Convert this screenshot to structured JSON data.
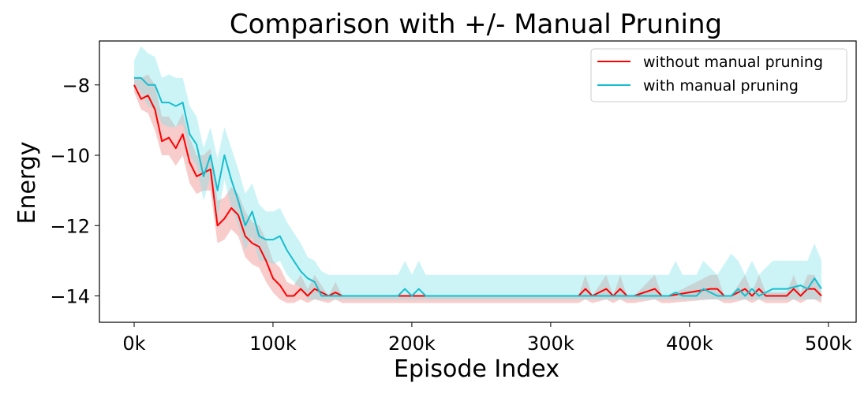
{
  "chart_data": {
    "type": "line",
    "title": "Comparison with +/- Manual Pruning",
    "xlabel": "Episode Index",
    "ylabel": "Energy",
    "xlim": [
      -25000,
      520000
    ],
    "ylim": [
      -14.75,
      -6.75
    ],
    "xticks": [
      0,
      100000,
      200000,
      300000,
      400000,
      500000
    ],
    "xtick_labels": [
      "0k",
      "100k",
      "200k",
      "300k",
      "400k",
      "500k"
    ],
    "yticks": [
      -8,
      -10,
      -12,
      -14
    ],
    "ytick_labels": [
      "−8",
      "−10",
      "−12",
      "−14"
    ],
    "grid": false,
    "legend_position": "top-right",
    "series": [
      {
        "name": "without manual pruning",
        "color": "#ff0000",
        "band_color": "#f08080",
        "x": [
          0,
          5000,
          10000,
          15000,
          20000,
          25000,
          30000,
          35000,
          40000,
          45000,
          50000,
          55000,
          60000,
          65000,
          70000,
          75000,
          80000,
          85000,
          90000,
          95000,
          100000,
          105000,
          110000,
          115000,
          120000,
          125000,
          130000,
          140000,
          145000,
          150000,
          200000,
          250000,
          300000,
          320000,
          325000,
          330000,
          340000,
          345000,
          350000,
          355000,
          360000,
          375000,
          380000,
          385000,
          415000,
          420000,
          425000,
          430000,
          440000,
          445000,
          450000,
          455000,
          460000,
          470000,
          475000,
          480000,
          485000,
          490000,
          495000
        ],
        "y": [
          -8.0,
          -8.4,
          -8.3,
          -8.7,
          -9.6,
          -9.5,
          -9.8,
          -9.4,
          -10.2,
          -10.6,
          -10.5,
          -10.4,
          -12.0,
          -11.8,
          -11.5,
          -11.7,
          -12.3,
          -12.5,
          -12.6,
          -13.0,
          -13.5,
          -13.7,
          -14.0,
          -14.0,
          -13.8,
          -14.0,
          -13.8,
          -14.0,
          -13.9,
          -14.0,
          -14.0,
          -14.0,
          -14.0,
          -14.0,
          -13.8,
          -14.0,
          -13.8,
          -14.0,
          -13.8,
          -14.0,
          -14.0,
          -13.8,
          -14.0,
          -14.0,
          -13.8,
          -13.8,
          -14.0,
          -14.0,
          -13.8,
          -14.0,
          -13.8,
          -14.0,
          -14.0,
          -14.0,
          -13.8,
          -14.0,
          -13.8,
          -13.8,
          -14.0
        ],
        "lower": [
          -8.2,
          -8.7,
          -8.8,
          -9.3,
          -10.0,
          -10.0,
          -10.3,
          -10.0,
          -10.8,
          -11.1,
          -11.0,
          -11.0,
          -12.5,
          -12.4,
          -12.1,
          -12.3,
          -12.9,
          -13.1,
          -13.2,
          -13.6,
          -13.9,
          -14.1,
          -14.2,
          -14.2,
          -14.1,
          -14.2,
          -14.1,
          -14.2,
          -14.1,
          -14.2,
          -14.2,
          -14.2,
          -14.2,
          -14.2,
          -14.1,
          -14.2,
          -14.1,
          -14.2,
          -14.1,
          -14.2,
          -14.2,
          -14.1,
          -14.2,
          -14.2,
          -14.1,
          -14.1,
          -14.2,
          -14.2,
          -14.1,
          -14.2,
          -14.1,
          -14.2,
          -14.2,
          -14.2,
          -14.1,
          -14.2,
          -14.1,
          -14.1,
          -14.2
        ],
        "upper": [
          -7.8,
          -7.8,
          -7.7,
          -8.0,
          -8.9,
          -8.9,
          -9.2,
          -8.8,
          -9.5,
          -10.0,
          -10.0,
          -9.8,
          -11.3,
          -11.2,
          -10.9,
          -11.1,
          -11.6,
          -11.9,
          -12.0,
          -12.4,
          -13.0,
          -13.2,
          -13.6,
          -13.7,
          -13.4,
          -13.8,
          -13.4,
          -14.0,
          -13.6,
          -14.0,
          -14.0,
          -14.0,
          -14.0,
          -14.0,
          -13.4,
          -14.0,
          -13.4,
          -14.0,
          -13.4,
          -14.0,
          -14.0,
          -13.4,
          -14.0,
          -14.0,
          -13.4,
          -13.4,
          -14.0,
          -14.0,
          -13.4,
          -13.9,
          -13.4,
          -13.9,
          -13.9,
          -13.9,
          -13.4,
          -13.9,
          -13.4,
          -13.4,
          -13.9
        ]
      },
      {
        "name": "with manual pruning",
        "color": "#17becf",
        "band_color": "#7fe3e8",
        "x": [
          0,
          5000,
          10000,
          15000,
          20000,
          25000,
          30000,
          35000,
          40000,
          45000,
          50000,
          55000,
          60000,
          65000,
          70000,
          75000,
          80000,
          85000,
          90000,
          95000,
          100000,
          105000,
          110000,
          115000,
          120000,
          125000,
          130000,
          135000,
          140000,
          150000,
          190000,
          195000,
          200000,
          205000,
          210000,
          250000,
          300000,
          350000,
          385000,
          390000,
          395000,
          405000,
          410000,
          420000,
          430000,
          435000,
          440000,
          445000,
          450000,
          460000,
          470000,
          480000,
          485000,
          490000,
          495000
        ],
        "y": [
          -7.8,
          -7.8,
          -8.0,
          -8.0,
          -8.5,
          -8.5,
          -8.6,
          -8.5,
          -9.4,
          -9.7,
          -10.6,
          -10.0,
          -11.0,
          -10.0,
          -10.7,
          -11.3,
          -12.0,
          -11.6,
          -12.3,
          -12.4,
          -12.4,
          -12.3,
          -12.7,
          -13.0,
          -13.3,
          -13.5,
          -13.6,
          -14.0,
          -14.0,
          -14.0,
          -14.0,
          -13.8,
          -14.0,
          -13.8,
          -14.0,
          -14.0,
          -14.0,
          -14.0,
          -14.0,
          -13.9,
          -14.0,
          -14.0,
          -13.8,
          -14.0,
          -14.0,
          -13.8,
          -14.0,
          -13.8,
          -14.0,
          -13.8,
          -13.8,
          -13.7,
          -13.8,
          -13.5,
          -13.8
        ],
        "lower": [
          -8.0,
          -8.2,
          -8.6,
          -8.7,
          -9.1,
          -9.2,
          -9.2,
          -9.1,
          -10.0,
          -10.3,
          -11.3,
          -10.6,
          -11.8,
          -10.7,
          -11.5,
          -12.0,
          -12.7,
          -12.3,
          -13.0,
          -13.0,
          -13.1,
          -13.0,
          -13.4,
          -13.6,
          -13.8,
          -14.1,
          -14.1,
          -14.1,
          -14.1,
          -14.1,
          -14.1,
          -14.1,
          -14.1,
          -14.1,
          -14.1,
          -14.1,
          -14.1,
          -14.1,
          -14.1,
          -14.1,
          -14.1,
          -14.1,
          -14.1,
          -14.1,
          -14.1,
          -14.1,
          -14.1,
          -14.1,
          -14.1,
          -14.1,
          -14.1,
          -14.1,
          -14.1,
          -14.1,
          -14.1
        ],
        "upper": [
          -7.3,
          -6.9,
          -7.1,
          -7.2,
          -7.8,
          -7.7,
          -7.8,
          -7.8,
          -8.6,
          -8.9,
          -9.8,
          -9.2,
          -10.1,
          -9.2,
          -9.8,
          -10.4,
          -11.1,
          -10.8,
          -11.4,
          -11.6,
          -11.6,
          -11.5,
          -11.9,
          -12.2,
          -12.5,
          -12.9,
          -13.0,
          -13.3,
          -13.4,
          -13.4,
          -13.4,
          -13.0,
          -13.4,
          -13.0,
          -13.4,
          -13.4,
          -13.4,
          -13.4,
          -13.4,
          -13.0,
          -13.4,
          -13.4,
          -13.0,
          -13.4,
          -12.8,
          -13.0,
          -13.4,
          -13.0,
          -13.4,
          -13.0,
          -13.0,
          -13.0,
          -13.0,
          -12.5,
          -13.0
        ]
      }
    ]
  }
}
